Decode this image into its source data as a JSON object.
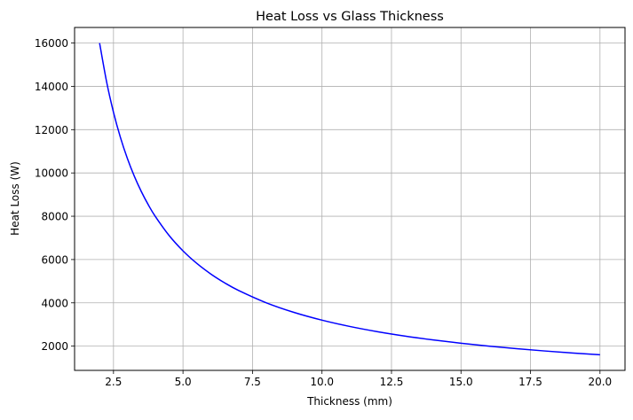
{
  "chart_data": {
    "type": "line",
    "title": "Heat Loss vs Glass Thickness",
    "xlabel": "Thickness (mm)",
    "ylabel": "Heat Loss (W)",
    "xlim": [
      1.1,
      20.9
    ],
    "ylim": [
      880,
      16720
    ],
    "xticks": [
      2.5,
      5.0,
      7.5,
      10.0,
      12.5,
      15.0,
      17.5,
      20.0
    ],
    "xtick_labels": [
      "2.5",
      "5.0",
      "7.5",
      "10.0",
      "12.5",
      "15.0",
      "17.5",
      "20.0"
    ],
    "yticks": [
      2000,
      4000,
      6000,
      8000,
      10000,
      12000,
      14000,
      16000
    ],
    "ytick_labels": [
      "2000",
      "4000",
      "6000",
      "8000",
      "10000",
      "12000",
      "14000",
      "16000"
    ],
    "grid": true,
    "series": [
      {
        "name": "Heat Loss",
        "color": "#0000ff",
        "x": [
          2,
          2.25,
          2.5,
          2.75,
          3,
          3.25,
          3.5,
          3.75,
          4,
          4.5,
          5,
          5.5,
          6,
          6.5,
          7,
          8,
          9,
          10,
          11,
          12,
          13,
          14,
          15,
          16,
          17,
          18,
          19,
          20
        ],
        "y": [
          16000,
          14222,
          12800,
          11636,
          10667,
          9846,
          9143,
          8533,
          8000,
          7111,
          6400,
          5818,
          5333,
          4923,
          4571,
          4000,
          3556,
          3200,
          2909,
          2667,
          2462,
          2286,
          2133,
          2000,
          1882,
          1778,
          1684,
          1600
        ]
      }
    ]
  }
}
